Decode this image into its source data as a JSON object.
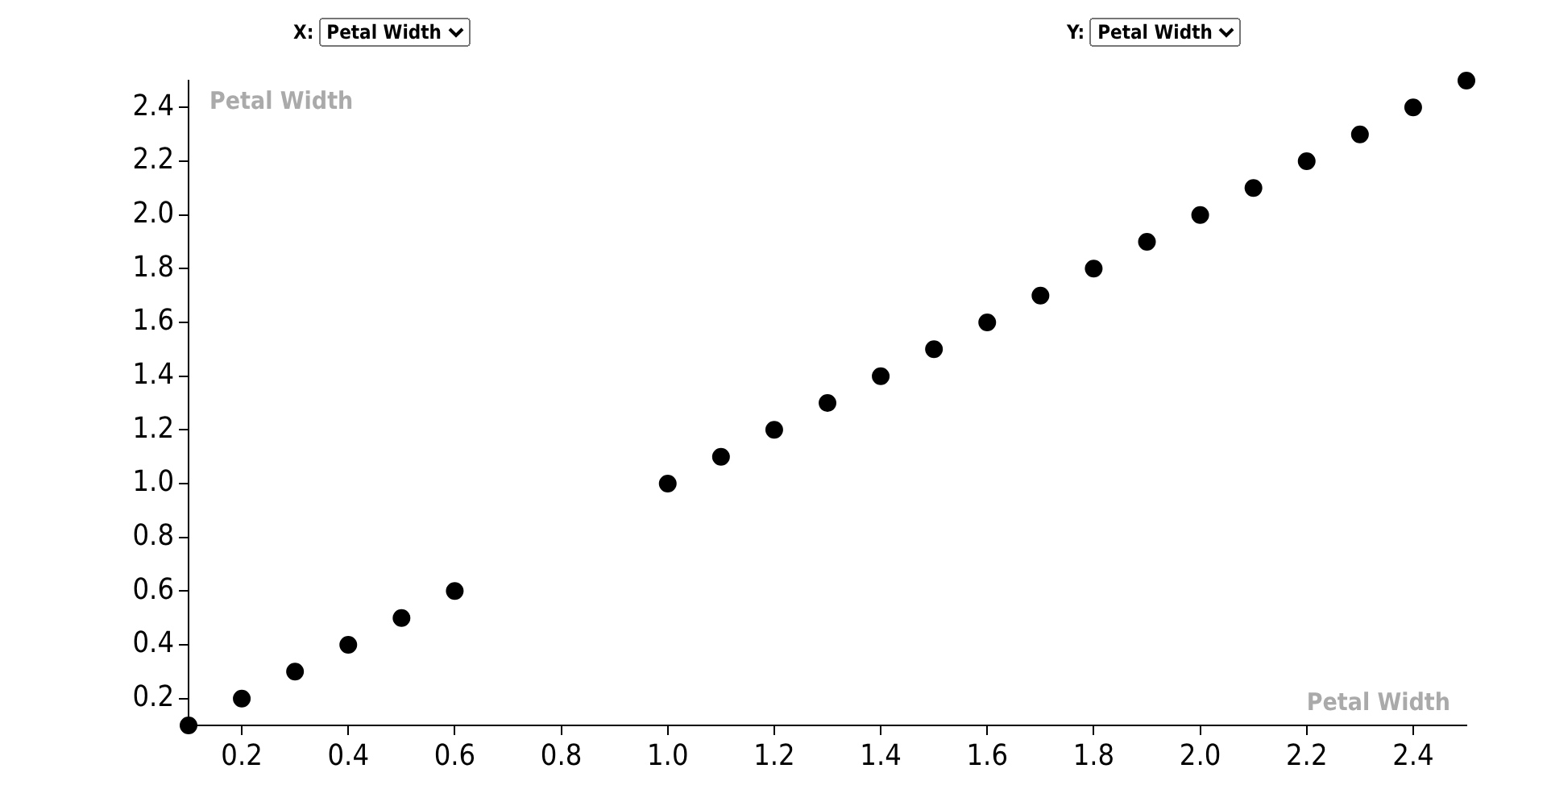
{
  "chart_data": {
    "type": "scatter",
    "xlabel": "Petal Width",
    "ylabel": "Petal Width",
    "annotations": [
      "X:",
      "Y:"
    ],
    "x": [
      0.1,
      0.2,
      0.3,
      0.4,
      0.5,
      0.6,
      1.0,
      1.1,
      1.2,
      1.3,
      1.4,
      1.5,
      1.6,
      1.7,
      1.8,
      1.9,
      2.0,
      2.1,
      2.2,
      2.3,
      2.4,
      2.5
    ],
    "series": [
      {
        "color": "#000000",
        "values": [
          0.1,
          0.2,
          0.3,
          0.4,
          0.5,
          0.6,
          1.0,
          1.1,
          1.2,
          1.3,
          1.4,
          1.5,
          1.6,
          1.7,
          1.8,
          1.9,
          2.0,
          2.1,
          2.2,
          2.3,
          2.4,
          2.5
        ]
      }
    ],
    "xlim": [
      0.1,
      2.5
    ],
    "ylim": [
      0.1,
      2.5
    ],
    "xticks": [
      0.2,
      0.4,
      0.6,
      0.8,
      {
        "value": 1.0,
        "label": "1.0"
      },
      1.2,
      1.4,
      1.6,
      1.8,
      {
        "value": 2.0,
        "label": "2.0"
      },
      2.2,
      2.4
    ],
    "yticks": [
      0.2,
      0.4,
      0.6,
      0.8,
      {
        "value": 1.0,
        "label": "1.0"
      },
      1.2,
      1.4,
      1.6,
      1.8,
      {
        "value": 2.0,
        "label": "2.0"
      },
      2.2,
      2.4
    ],
    "grid": false,
    "legend": false,
    "marker": "circle"
  }
}
